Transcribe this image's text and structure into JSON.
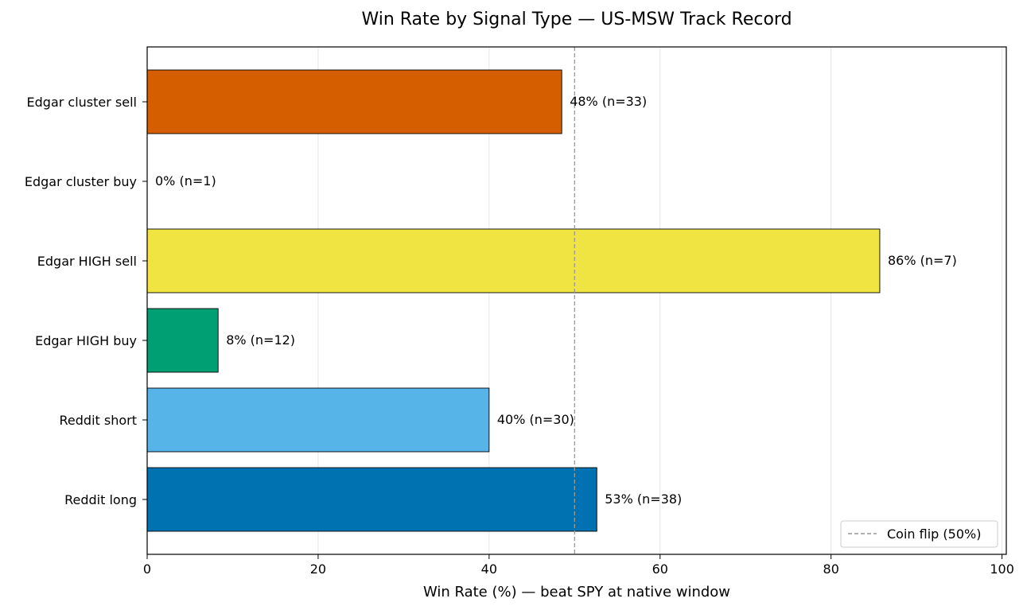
{
  "chart_data": {
    "type": "bar",
    "orientation": "horizontal",
    "title": "Win Rate by Signal Type — US-MSW Track Record",
    "xlabel": "Win Rate (%) — beat SPY at native window",
    "ylabel": "",
    "xlim": [
      0,
      100
    ],
    "xticks": [
      "0",
      "20",
      "40",
      "60",
      "80",
      "100"
    ],
    "grid": "vertical",
    "legend_position": "bottom-right",
    "categories": [
      "Edgar cluster sell",
      "Edgar cluster buy",
      "Edgar HIGH sell",
      "Edgar HIGH buy",
      "Reddit short",
      "Reddit long"
    ],
    "values": [
      48.5,
      0,
      85.7,
      8.3,
      40,
      52.6
    ],
    "labels": [
      "48%  (n=33)",
      "0%  (n=1)",
      "86%  (n=7)",
      "8%  (n=12)",
      "40%  (n=30)",
      "53%  (n=38)"
    ],
    "colors": [
      "#D55E00",
      "#D55E00",
      "#F0E442",
      "#009E73",
      "#56B4E9",
      "#0072B2"
    ],
    "reference_line": {
      "x": 50,
      "label": "Coin flip (50%)",
      "color": "#999999",
      "style": "dashed"
    }
  }
}
